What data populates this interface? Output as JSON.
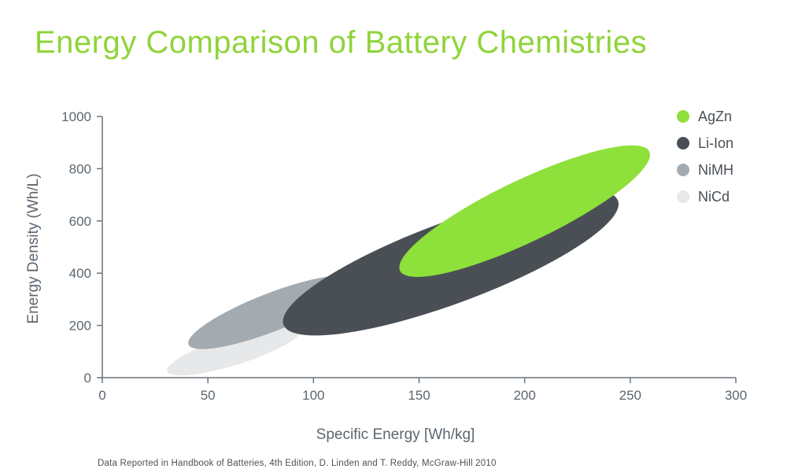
{
  "chart_data": {
    "type": "scatter",
    "title": "Energy Comparison of Battery Chemistries",
    "xlabel": "Specific Energy [Wh/kg]",
    "ylabel": "Energy Density (Wh/L)",
    "xlim": [
      0,
      300
    ],
    "ylim": [
      0,
      1000
    ],
    "x_ticks": [
      0,
      50,
      100,
      150,
      200,
      250,
      300
    ],
    "y_ticks": [
      0,
      200,
      400,
      600,
      800,
      1000
    ],
    "grid": false,
    "legend_position": "top-right",
    "series": [
      {
        "name": "NiCd",
        "color": "#e6e8ea",
        "x_range": [
          35,
          90
        ],
        "y_range": [
          35,
          175
        ]
      },
      {
        "name": "NiMH",
        "color": "#a3abb0",
        "x_range": [
          45,
          115
        ],
        "y_range": [
          140,
          360
        ]
      },
      {
        "name": "Li-Ion",
        "color": "#4a4f56",
        "x_range": [
          90,
          240
        ],
        "y_range": [
          215,
          665
        ]
      },
      {
        "name": "AgZn",
        "color": "#8ee03a",
        "x_range": [
          145,
          255
        ],
        "y_range": [
          425,
          850
        ]
      }
    ],
    "legend_order": [
      "AgZn",
      "Li-Ion",
      "NiMH",
      "NiCd"
    ],
    "source": "Data Reported in Handbook of Batteries, 4th Edition, D. Linden and T. Reddy, McGraw-Hill 2010"
  }
}
